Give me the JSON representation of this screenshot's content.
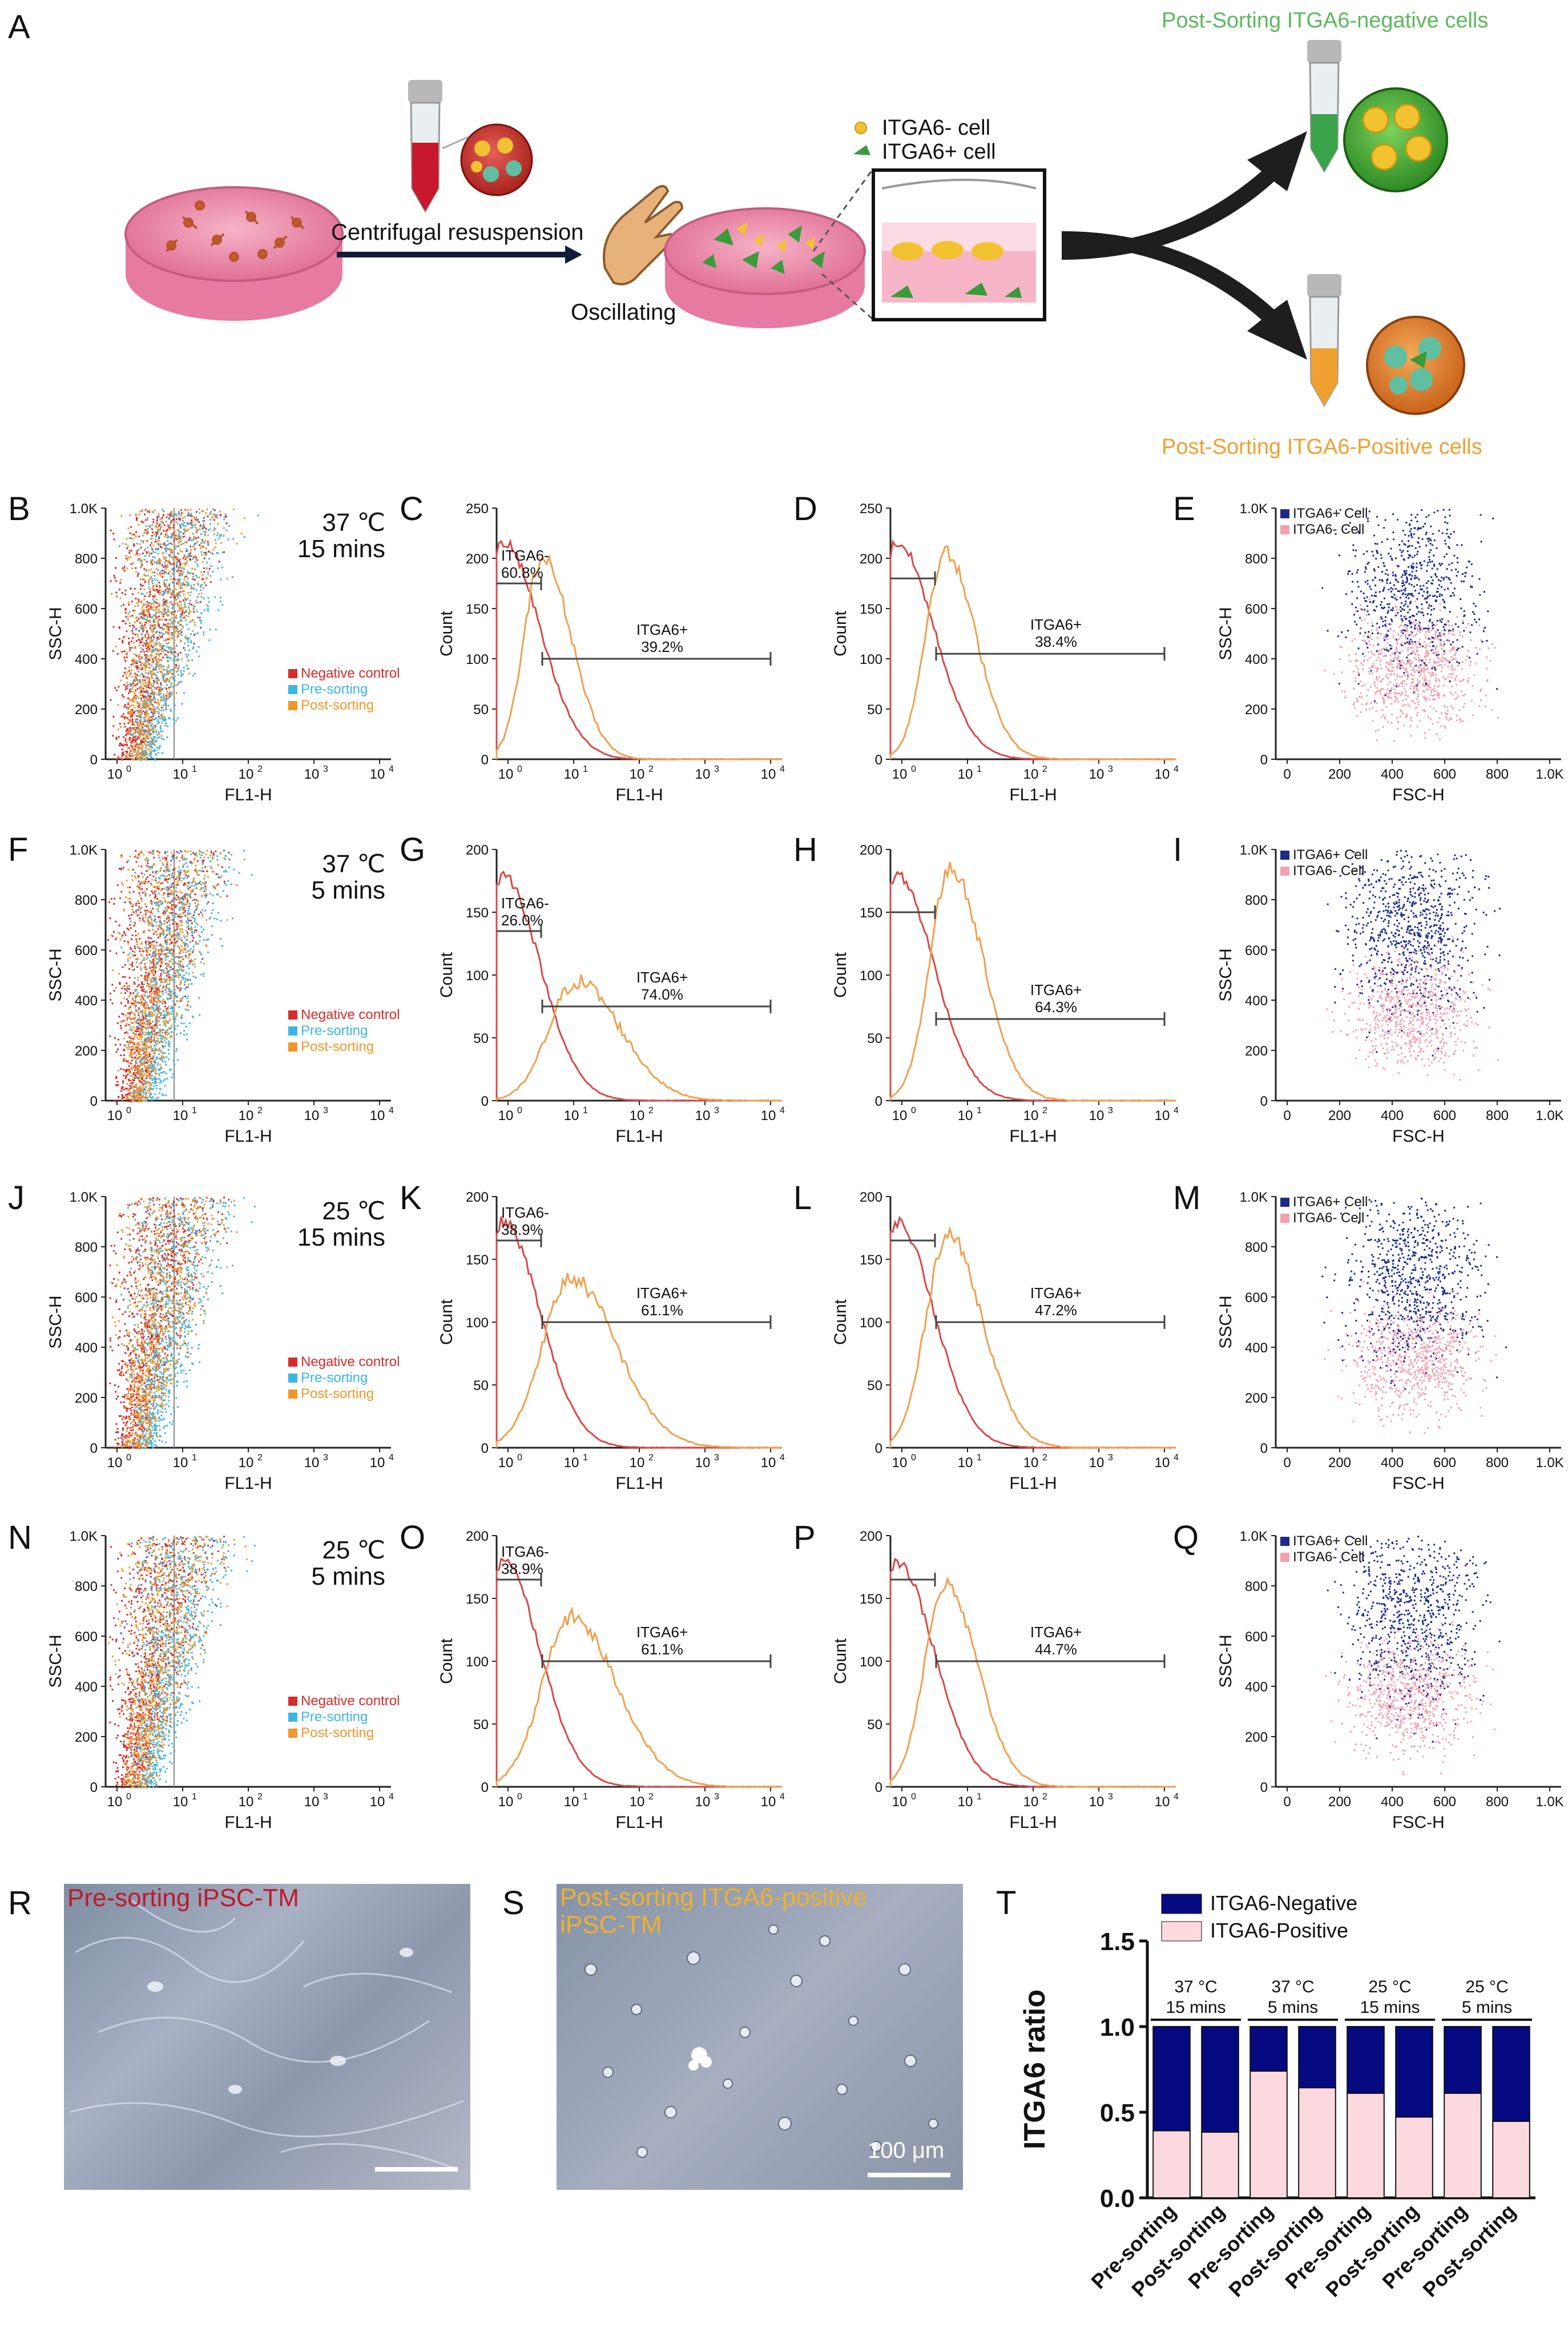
{
  "panel_letters": [
    "A",
    "B",
    "C",
    "D",
    "E",
    "F",
    "G",
    "H",
    "I",
    "J",
    "K",
    "L",
    "M",
    "N",
    "O",
    "P",
    "Q",
    "R",
    "S",
    "T"
  ],
  "schematic": {
    "centrifugal_label": "Centrifugal resuspension",
    "oscillating_label": "Oscillating",
    "legend_neg": "ITGA6- cell",
    "legend_pos": "ITGA6+ cell",
    "post_neg_title": "Post-Sorting ITGA6-negative cells",
    "post_pos_title": "Post-Sorting ITGA6-Positive cells",
    "colors": {
      "dish": "#e8739a",
      "neg_cell": "#f2c230",
      "pos_cell": "#3d9a3d",
      "arrow": "#111111",
      "neg_title": "#5cb85c",
      "pos_title": "#f0a030"
    }
  },
  "conditions": [
    {
      "temp": "37 ℃",
      "time": "15 mins",
      "unsorted_neg_pct": "60.8%",
      "unsorted_pos_pct": "39.2%",
      "sorted_pos_pct": "38.4%",
      "neg_ratio_pre": 0.608,
      "neg_ratio_post": 0.616
    },
    {
      "temp": "37 ℃",
      "time": "5 mins",
      "unsorted_neg_pct": "26.0%",
      "unsorted_pos_pct": "74.0%",
      "sorted_pos_pct": "64.3%",
      "neg_ratio_pre": 0.26,
      "neg_ratio_post": 0.357
    },
    {
      "temp": "25 ℃",
      "time": "15 mins",
      "unsorted_neg_pct": "38.9%",
      "unsorted_pos_pct": "61.1%",
      "sorted_pos_pct": "47.2%",
      "neg_ratio_pre": 0.389,
      "neg_ratio_post": 0.528
    },
    {
      "temp": "25 ℃",
      "time": "5 mins",
      "unsorted_neg_pct": "38.9%",
      "unsorted_pos_pct": "61.1%",
      "sorted_pos_pct": "44.7%",
      "neg_ratio_pre": 0.389,
      "neg_ratio_post": 0.553
    }
  ],
  "flow_labels": {
    "ssc": "SSC-H",
    "fl1": "FL1-H",
    "count": "Count",
    "fsc": "FSC-H",
    "neg_gate": "ITGA6-",
    "pos_gate": "ITGA6+",
    "legend_neg_control": "Negative control",
    "legend_pre": "Pre-sorting",
    "legend_post": "Post-sorting",
    "legend_pos_cell": "ITGA6+  Cell",
    "legend_neg_cell": "ITGA6-  Cell"
  },
  "axis_ticks": {
    "ssc": [
      "0",
      "200",
      "400",
      "600",
      "800",
      "1.0K"
    ],
    "fl1_exp": [
      "0",
      "1",
      "2",
      "3",
      "4"
    ],
    "count_c": [
      "0",
      "50",
      "100",
      "150",
      "200",
      "250"
    ],
    "count_d": [
      "0",
      "50",
      "100",
      "150",
      "200",
      "250"
    ],
    "count_g": [
      "0",
      "50",
      "100",
      "150",
      "200"
    ],
    "count_h": [
      "0",
      "50",
      "100",
      "150",
      "200"
    ],
    "count_kl": [
      "0",
      "50",
      "100",
      "150",
      "200"
    ],
    "fsc": [
      "0",
      "200",
      "400",
      "600",
      "800",
      "1.0K"
    ]
  },
  "micrographs": {
    "pre_label": "Pre-sorting iPSC-TM",
    "post_label": "Post-sorting ITGA6-positive iPSC-TM",
    "scale_label": "100 μm",
    "colors": {
      "pre_label": "#c0182b",
      "post_label": "#f0b030"
    }
  },
  "chart_data": {
    "type": "bar",
    "stacked": true,
    "title": "",
    "ylabel": "ITGA6 ratio",
    "ylim": [
      0,
      1.5
    ],
    "yticks": [
      "0.0",
      "0.5",
      "1.0",
      "1.5"
    ],
    "categories": [
      "Pre-sorting",
      "Post-sorting",
      "Pre-sorting",
      "Post-sorting",
      "Pre-sorting",
      "Post-sorting",
      "Pre-sorting",
      "Post-sorting"
    ],
    "groups": [
      {
        "line1": "37 °C",
        "line2": "15 mins"
      },
      {
        "line1": "37 °C",
        "line2": "5 mins"
      },
      {
        "line1": "25 °C",
        "line2": "15 mins"
      },
      {
        "line1": "25 °C",
        "line2": "5 mins"
      }
    ],
    "series": [
      {
        "name": "ITGA6-Positive",
        "color": "#fbd9de",
        "values": [
          0.392,
          0.384,
          0.74,
          0.643,
          0.611,
          0.472,
          0.611,
          0.447
        ]
      },
      {
        "name": "ITGA6-Negative",
        "color": "#050a80",
        "values": [
          0.608,
          0.616,
          0.26,
          0.357,
          0.389,
          0.528,
          0.389,
          0.553
        ]
      }
    ],
    "legend_order": [
      "ITGA6-Negative",
      "ITGA6-Positive"
    ]
  }
}
